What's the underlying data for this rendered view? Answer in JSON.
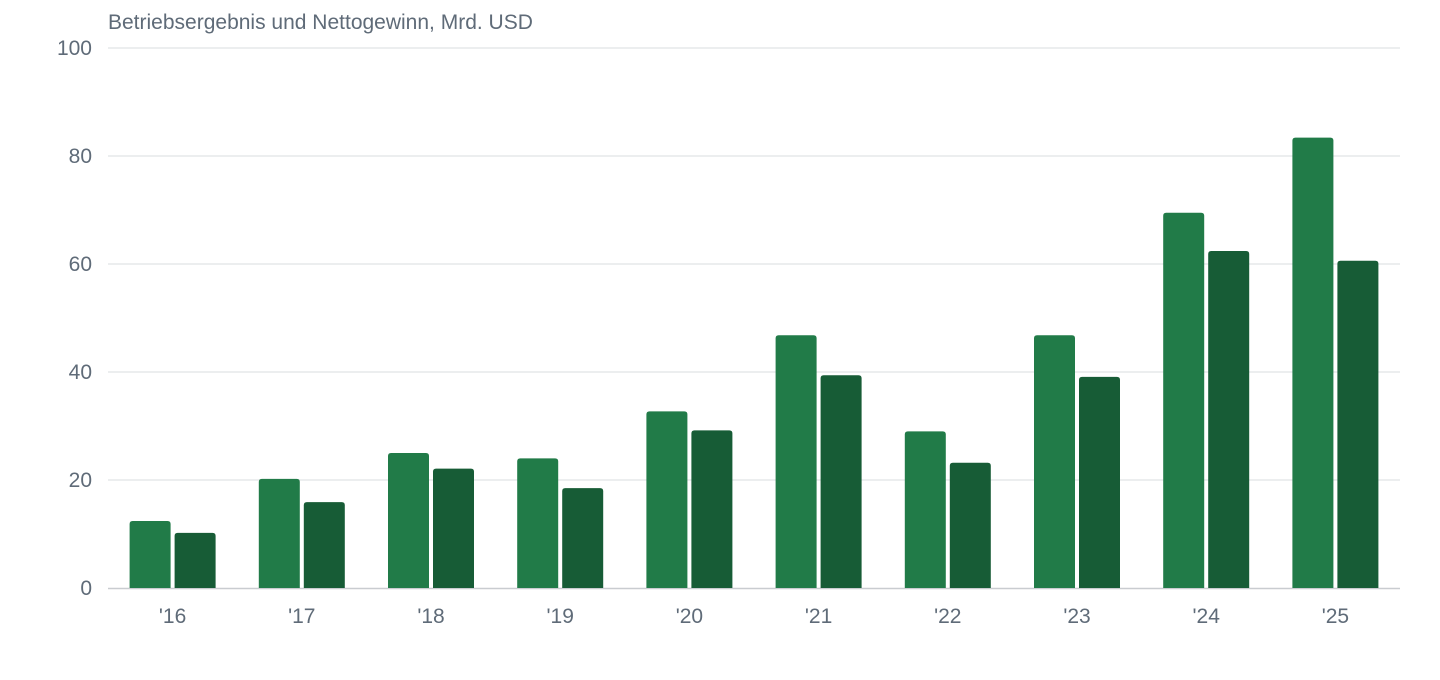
{
  "chart_data": {
    "type": "bar",
    "title": "Betriebsergebnis und Nettogewinn, Mrd. USD",
    "xlabel": "",
    "ylabel": "",
    "categories": [
      "'16",
      "'17",
      "'18",
      "'19",
      "'20",
      "'21",
      "'22",
      "'23",
      "'24",
      "'25"
    ],
    "series": [
      {
        "color": "#217b48",
        "values": [
          12.4,
          20.2,
          25.0,
          24.0,
          32.7,
          46.8,
          29.0,
          46.8,
          69.5,
          83.4
        ]
      },
      {
        "color": "#175c36",
        "values": [
          10.2,
          15.9,
          22.1,
          18.5,
          29.2,
          39.4,
          23.2,
          39.1,
          62.4,
          60.6
        ]
      }
    ],
    "ylim": [
      0,
      100
    ],
    "yticks": [
      0,
      20,
      40,
      60,
      80,
      100
    ],
    "grid": true,
    "legend": "none"
  }
}
